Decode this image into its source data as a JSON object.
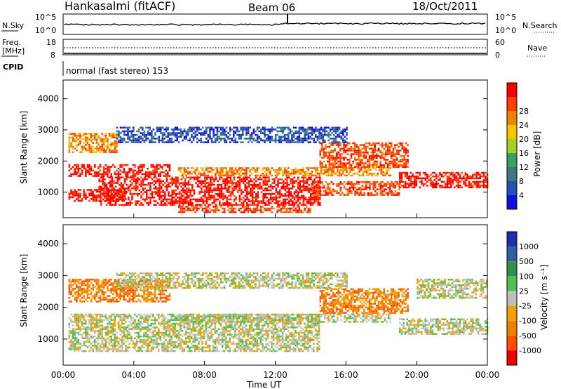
{
  "header": {
    "station": "Hankasalmi (fitACF)",
    "beam": "Beam 06",
    "date": "18/Oct/2011"
  },
  "strips": {
    "nsky_label": "N.Sky",
    "nsearch_label": "N.Search",
    "freq_label_line1": "Freq.",
    "freq_label_line2": "[MHz]",
    "nave_label": "Nave",
    "cpid_label": "CPID",
    "cpid_text": "normal (fast stereo) 153",
    "nsky_ticks": [
      "10^5",
      "10^0"
    ],
    "nsearch_ticks": [
      "10^5",
      "10^0"
    ],
    "freq_ticks": [
      "18",
      "8"
    ],
    "nave_ticks": [
      "60",
      "0"
    ]
  },
  "colors": {
    "power_scale": [
      "#1010e0",
      "#2850b0",
      "#3a7a80",
      "#3aa060",
      "#a8d020",
      "#f0c800",
      "#f08000",
      "#ff4000",
      "#ff0000"
    ],
    "velocity_scale": [
      "#ee0000",
      "#ff5000",
      "#f08000",
      "#f0a000",
      "#c0c0b8",
      "#50c050",
      "#309050",
      "#3060a0",
      "#1830b0"
    ]
  },
  "chart_data": [
    {
      "type": "heatmap",
      "panel": "power",
      "ylabel": "Slant Range [km]",
      "xlabel": "Time UT",
      "x_ticks": [
        "00:00",
        "04:00",
        "08:00",
        "12:00",
        "16:00",
        "20:00",
        "00:00"
      ],
      "y_ticks": [
        "1000",
        "2000",
        "3000",
        "4000"
      ],
      "xlim_hours": [
        0,
        24
      ],
      "ylim_km": [
        180,
        4600
      ],
      "colorbar_label": "Power [dB]",
      "colorbar_ticks": [
        "4",
        "8",
        "12",
        "16",
        "20",
        "24",
        "28"
      ],
      "bands": [
        {
          "t0": 0.3,
          "t1": 6.0,
          "r0": 1500,
          "r1": 1900,
          "level": 8
        },
        {
          "t0": 0.3,
          "t1": 3.5,
          "r0": 700,
          "r1": 1100,
          "level": 8
        },
        {
          "t0": 2.0,
          "t1": 14.5,
          "r0": 600,
          "r1": 1500,
          "level": 8
        },
        {
          "t0": 6.5,
          "t1": 18.5,
          "r0": 1550,
          "r1": 1800,
          "level": 6
        },
        {
          "t0": 6.5,
          "t1": 14.0,
          "r0": 380,
          "r1": 560,
          "level": 7
        },
        {
          "t0": 14.0,
          "t1": 19.0,
          "r0": 900,
          "r1": 1350,
          "level": 7
        },
        {
          "t0": 14.5,
          "t1": 19.5,
          "r0": 1800,
          "r1": 2600,
          "level": 7
        },
        {
          "t0": 19.0,
          "t1": 24.0,
          "r0": 1150,
          "r1": 1650,
          "level": 8
        },
        {
          "t0": 0.3,
          "t1": 3.0,
          "r0": 2300,
          "r1": 2900,
          "level": 6
        },
        {
          "t0": 3.0,
          "t1": 16.0,
          "r0": 2600,
          "r1": 3100,
          "level": 1
        }
      ]
    },
    {
      "type": "heatmap",
      "panel": "velocity",
      "ylabel": "Slant Range [km]",
      "xlabel": "Time UT",
      "x_ticks": [
        "00:00",
        "04:00",
        "08:00",
        "12:00",
        "16:00",
        "20:00",
        "00:00"
      ],
      "y_ticks": [
        "1000",
        "2000",
        "3000",
        "4000"
      ],
      "xlim_hours": [
        0,
        24
      ],
      "ylim_km": [
        180,
        4600
      ],
      "colorbar_label": "Velocity [m s⁻¹]",
      "colorbar_ticks": [
        "1000",
        "500",
        "100",
        "25",
        "-25",
        "-100",
        "-500",
        "-1000"
      ],
      "bands": [
        {
          "t0": 0.3,
          "t1": 14.5,
          "r0": 600,
          "r1": 1800,
          "level": 4
        },
        {
          "t0": 6.5,
          "t1": 18.5,
          "r0": 1550,
          "r1": 1800,
          "level": 4
        },
        {
          "t0": 0.3,
          "t1": 6.0,
          "r0": 2200,
          "r1": 2900,
          "level": 2
        },
        {
          "t0": 14.5,
          "t1": 19.5,
          "r0": 1800,
          "r1": 2600,
          "level": 2
        },
        {
          "t0": 19.0,
          "t1": 24.0,
          "r0": 1150,
          "r1": 1650,
          "level": 4
        },
        {
          "t0": 20.0,
          "t1": 24.0,
          "r0": 2300,
          "r1": 2900,
          "level": 4
        },
        {
          "t0": 3.0,
          "t1": 16.0,
          "r0": 2600,
          "r1": 3100,
          "level": 4
        }
      ]
    }
  ]
}
